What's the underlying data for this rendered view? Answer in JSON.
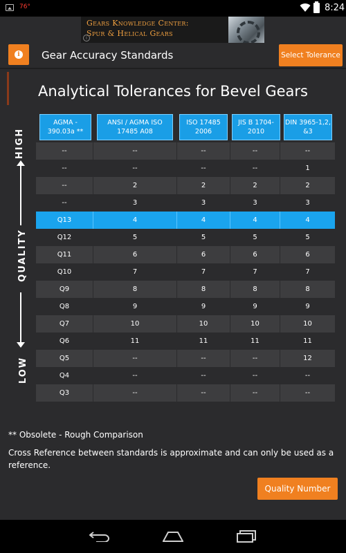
{
  "status_bar": {
    "temperature": "76°",
    "time": "8:24",
    "icons": [
      "image-icon",
      "wifi-icon",
      "battery-icon"
    ]
  },
  "ad": {
    "title": "Gears Knowledge Center:",
    "subtitle": "Spur & Helical Gears",
    "info_symbol": "i"
  },
  "header": {
    "title": "Gear Accuracy Standards",
    "info_symbol": "i",
    "select_button": "Select Tolerance"
  },
  "main": {
    "title": "Analytical Tolerances for Bevel Gears"
  },
  "axis": {
    "high": "HIGH",
    "quality": "QUALITY",
    "low": "LOW"
  },
  "table": {
    "columns": [
      "AGMA - 390.03a **",
      "ANSI / AGMA ISO 17485 A08",
      "ISO 17485 2006",
      "JIS B 1704-2010",
      "DIN 3965-1,2, &3"
    ],
    "highlight_row": 4,
    "rows": [
      [
        "--",
        "--",
        "--",
        "--",
        "--"
      ],
      [
        "--",
        "--",
        "--",
        "--",
        "1"
      ],
      [
        "--",
        "2",
        "2",
        "2",
        "2"
      ],
      [
        "--",
        "3",
        "3",
        "3",
        "3"
      ],
      [
        "Q13",
        "4",
        "4",
        "4",
        "4"
      ],
      [
        "Q12",
        "5",
        "5",
        "5",
        "5"
      ],
      [
        "Q11",
        "6",
        "6",
        "6",
        "6"
      ],
      [
        "Q10",
        "7",
        "7",
        "7",
        "7"
      ],
      [
        "Q9",
        "8",
        "8",
        "8",
        "8"
      ],
      [
        "Q8",
        "9",
        "9",
        "9",
        "9"
      ],
      [
        "Q7",
        "10",
        "10",
        "10",
        "10"
      ],
      [
        "Q6",
        "11",
        "11",
        "11",
        "11"
      ],
      [
        "Q5",
        "--",
        "--",
        "--",
        "12"
      ],
      [
        "Q4",
        "--",
        "--",
        "--",
        "--"
      ],
      [
        "Q3",
        "--",
        "--",
        "--",
        "--"
      ]
    ]
  },
  "footer": {
    "footnote": "** Obsolete - Rough Comparison",
    "disclaimer": "Cross Reference between standards is approximate and can only be used as a reference.",
    "quality_button": "Quality Number"
  },
  "colors": {
    "accent_orange": "#f08020",
    "accent_blue": "#1a9ee6",
    "background": "#2b2b2d",
    "row_dark": "#3d3d3f"
  }
}
